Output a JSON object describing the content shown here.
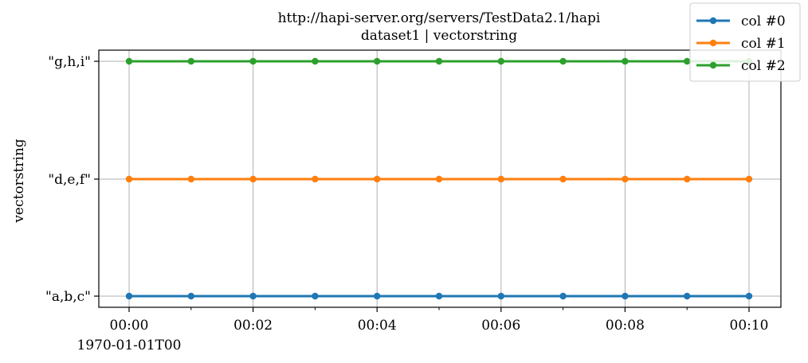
{
  "chart_data": {
    "type": "line",
    "title": "http://hapi-server.org/servers/TestData2.1/hapi",
    "subtitle": "dataset1 | vectorstring",
    "xlabel": "",
    "ylabel": "vectorstring",
    "x_offset_label": "1970-01-01T00",
    "x": [
      "00:00",
      "00:01",
      "00:02",
      "00:03",
      "00:04",
      "00:05",
      "00:06",
      "00:07",
      "00:08",
      "00:09",
      "00:10"
    ],
    "x_ticks": [
      "00:00",
      "00:02",
      "00:04",
      "00:06",
      "00:08",
      "00:10"
    ],
    "y_categories": [
      "\"a,b,c\"",
      "\"d,e,f\"",
      "\"g,h,i\""
    ],
    "series": [
      {
        "name": "col #0",
        "color": "#1f77b4",
        "values": [
          "\"a,b,c\"",
          "\"a,b,c\"",
          "\"a,b,c\"",
          "\"a,b,c\"",
          "\"a,b,c\"",
          "\"a,b,c\"",
          "\"a,b,c\"",
          "\"a,b,c\"",
          "\"a,b,c\"",
          "\"a,b,c\"",
          "\"a,b,c\""
        ]
      },
      {
        "name": "col #1",
        "color": "#ff7f0e",
        "values": [
          "\"d,e,f\"",
          "\"d,e,f\"",
          "\"d,e,f\"",
          "\"d,e,f\"",
          "\"d,e,f\"",
          "\"d,e,f\"",
          "\"d,e,f\"",
          "\"d,e,f\"",
          "\"d,e,f\"",
          "\"d,e,f\"",
          "\"d,e,f\""
        ]
      },
      {
        "name": "col #2",
        "color": "#2ca02c",
        "values": [
          "\"g,h,i\"",
          "\"g,h,i\"",
          "\"g,h,i\"",
          "\"g,h,i\"",
          "\"g,h,i\"",
          "\"g,h,i\"",
          "\"g,h,i\"",
          "\"g,h,i\"",
          "\"g,h,i\"",
          "\"g,h,i\"",
          "\"g,h,i\""
        ]
      }
    ],
    "grid": true,
    "legend_position": "top-right"
  }
}
